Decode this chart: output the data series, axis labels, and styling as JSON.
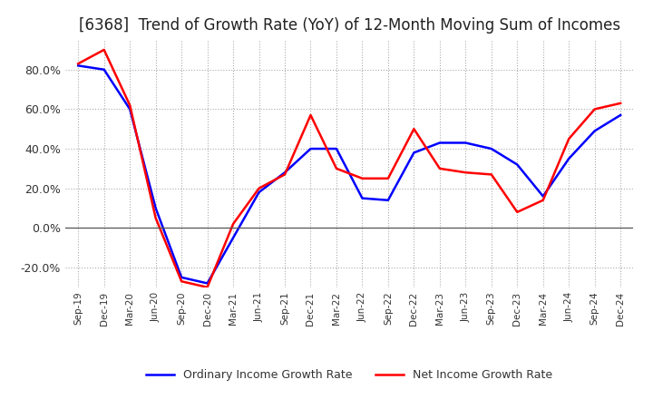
{
  "title": "[6368]  Trend of Growth Rate (YoY) of 12-Month Moving Sum of Incomes",
  "title_fontsize": 12,
  "ylim": [
    -0.3,
    0.95
  ],
  "yticks": [
    -0.2,
    0.0,
    0.2,
    0.4,
    0.6,
    0.8
  ],
  "background_color": "#ffffff",
  "grid_color": "#aaaaaa",
  "legend_labels": [
    "Ordinary Income Growth Rate",
    "Net Income Growth Rate"
  ],
  "legend_colors": [
    "#0000ff",
    "#ff0000"
  ],
  "x_labels": [
    "Sep-19",
    "Dec-19",
    "Mar-20",
    "Jun-20",
    "Sep-20",
    "Dec-20",
    "Mar-21",
    "Jun-21",
    "Sep-21",
    "Dec-21",
    "Mar-22",
    "Jun-22",
    "Sep-22",
    "Dec-22",
    "Mar-23",
    "Jun-23",
    "Sep-23",
    "Dec-23",
    "Mar-24",
    "Jun-24",
    "Sep-24",
    "Dec-24"
  ],
  "ordinary_income": [
    0.82,
    0.8,
    0.6,
    0.1,
    -0.25,
    -0.28,
    -0.05,
    0.18,
    0.28,
    0.4,
    0.4,
    0.15,
    0.14,
    0.38,
    0.43,
    0.43,
    0.4,
    0.32,
    0.16,
    0.35,
    0.49,
    0.57
  ],
  "net_income": [
    0.83,
    0.9,
    0.62,
    0.05,
    -0.27,
    -0.3,
    0.02,
    0.2,
    0.27,
    0.57,
    0.3,
    0.25,
    0.25,
    0.5,
    0.3,
    0.28,
    0.27,
    0.08,
    0.14,
    0.45,
    0.6,
    0.63
  ]
}
